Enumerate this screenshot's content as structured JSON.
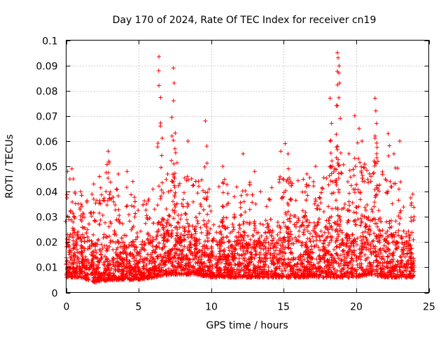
{
  "chart_data": {
    "type": "scatter",
    "title": "Day 170 of 2024, Rate Of TEC Index for receiver cn19",
    "xlabel": "GPS time / hours",
    "ylabel": "ROTI / TECUs",
    "xlim": [
      0,
      25
    ],
    "ylim": [
      0,
      0.1
    ],
    "xticks": [
      "0",
      "5",
      "10",
      "15",
      "20",
      "25"
    ],
    "yticks": [
      "0",
      "0.01",
      "0.02",
      "0.03",
      "0.04",
      "0.05",
      "0.06",
      "0.07",
      "0.08",
      "0.09",
      "0.1"
    ],
    "grid": true,
    "marker": "+",
    "color": "#ff0000",
    "series": [
      {
        "name": "ROTI",
        "envelope_hours": [
          0,
          1,
          2,
          3,
          4,
          5,
          6,
          7,
          8,
          9,
          10,
          11,
          12,
          13,
          14,
          15,
          16,
          17,
          18,
          19,
          20,
          21,
          22,
          23,
          24
        ],
        "typical_upper": [
          0.028,
          0.028,
          0.025,
          0.027,
          0.027,
          0.027,
          0.03,
          0.035,
          0.035,
          0.033,
          0.032,
          0.032,
          0.032,
          0.032,
          0.032,
          0.035,
          0.035,
          0.035,
          0.038,
          0.04,
          0.038,
          0.04,
          0.035,
          0.032,
          0.03
        ],
        "typical_lower": [
          0.006,
          0.006,
          0.004,
          0.005,
          0.005,
          0.005,
          0.006,
          0.007,
          0.007,
          0.007,
          0.006,
          0.006,
          0.006,
          0.006,
          0.006,
          0.006,
          0.006,
          0.006,
          0.006,
          0.006,
          0.006,
          0.007,
          0.006,
          0.006,
          0.006
        ],
        "peaks": [
          {
            "x": 0.1,
            "y": 0.048
          },
          {
            "x": 0.4,
            "y": 0.049
          },
          {
            "x": 0.5,
            "y": 0.045
          },
          {
            "x": 1.0,
            "y": 0.04
          },
          {
            "x": 1.9,
            "y": 0.043
          },
          {
            "x": 2.3,
            "y": 0.046
          },
          {
            "x": 2.9,
            "y": 0.056
          },
          {
            "x": 2.95,
            "y": 0.052
          },
          {
            "x": 3.6,
            "y": 0.047
          },
          {
            "x": 4.2,
            "y": 0.048
          },
          {
            "x": 4.6,
            "y": 0.044
          },
          {
            "x": 5.7,
            "y": 0.037
          },
          {
            "x": 6.4,
            "y": 0.0935
          },
          {
            "x": 6.4,
            "y": 0.082
          },
          {
            "x": 6.5,
            "y": 0.066
          },
          {
            "x": 7.4,
            "y": 0.089
          },
          {
            "x": 7.45,
            "y": 0.083
          },
          {
            "x": 7.4,
            "y": 0.076
          },
          {
            "x": 7.3,
            "y": 0.062
          },
          {
            "x": 7.5,
            "y": 0.057
          },
          {
            "x": 8.4,
            "y": 0.06
          },
          {
            "x": 9.6,
            "y": 0.068
          },
          {
            "x": 9.7,
            "y": 0.058
          },
          {
            "x": 10.8,
            "y": 0.05
          },
          {
            "x": 12.2,
            "y": 0.055
          },
          {
            "x": 13.0,
            "y": 0.048
          },
          {
            "x": 14.8,
            "y": 0.056
          },
          {
            "x": 15.1,
            "y": 0.059
          },
          {
            "x": 15.3,
            "y": 0.055
          },
          {
            "x": 16.6,
            "y": 0.047
          },
          {
            "x": 17.2,
            "y": 0.05
          },
          {
            "x": 18.2,
            "y": 0.077
          },
          {
            "x": 18.3,
            "y": 0.067
          },
          {
            "x": 18.2,
            "y": 0.06
          },
          {
            "x": 18.7,
            "y": 0.095
          },
          {
            "x": 18.75,
            "y": 0.093
          },
          {
            "x": 18.8,
            "y": 0.087
          },
          {
            "x": 18.85,
            "y": 0.083
          },
          {
            "x": 18.7,
            "y": 0.074
          },
          {
            "x": 18.9,
            "y": 0.069
          },
          {
            "x": 19.5,
            "y": 0.055
          },
          {
            "x": 19.9,
            "y": 0.07
          },
          {
            "x": 20.2,
            "y": 0.065
          },
          {
            "x": 20.4,
            "y": 0.06
          },
          {
            "x": 21.3,
            "y": 0.077
          },
          {
            "x": 21.35,
            "y": 0.072
          },
          {
            "x": 21.4,
            "y": 0.067
          },
          {
            "x": 21.3,
            "y": 0.062
          },
          {
            "x": 22.2,
            "y": 0.063
          },
          {
            "x": 22.6,
            "y": 0.055
          },
          {
            "x": 23.0,
            "y": 0.06
          },
          {
            "x": 23.9,
            "y": 0.039
          }
        ]
      }
    ]
  }
}
